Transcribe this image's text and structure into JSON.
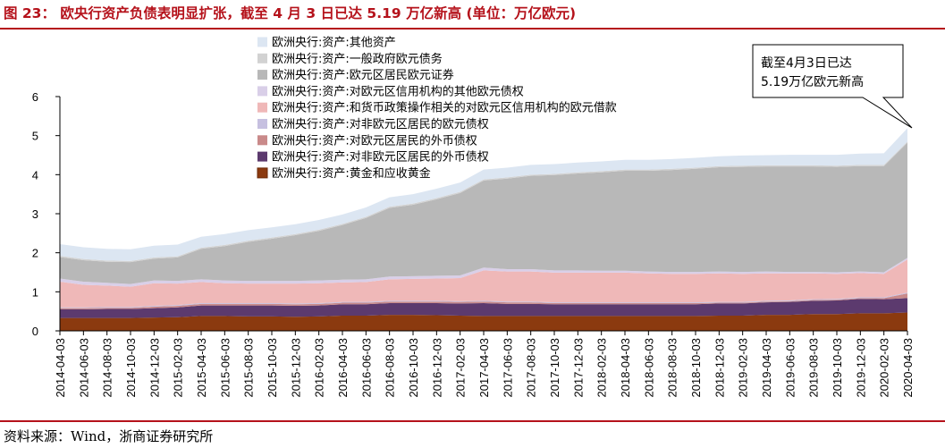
{
  "figure": {
    "label": "图 23：",
    "title": "欧央行资产负债表明显扩张，截至 4 月 3 日已达 5.19 万亿新高 (单位：万亿欧元)",
    "source": "资料来源：Wind，浙商证券研究所"
  },
  "chart_data": {
    "type": "area",
    "stacked": true,
    "title": "",
    "xlabel": "",
    "ylabel": "",
    "ylim": [
      0,
      6
    ],
    "yticks": [
      "0",
      "1",
      "2",
      "3",
      "4",
      "5",
      "6"
    ],
    "grid": false,
    "legend_position": "top-center",
    "x_tick_labels": [
      "2014-04-03",
      "2014-06-03",
      "2014-08-03",
      "2014-10-03",
      "2014-12-03",
      "2015-02-03",
      "2015-04-03",
      "2015-06-03",
      "2015-08-03",
      "2015-10-03",
      "2015-12-03",
      "2016-02-03",
      "2016-04-03",
      "2016-06-03",
      "2016-08-03",
      "2016-10-03",
      "2016-12-03",
      "2017-02-03",
      "2017-04-03",
      "2017-06-03",
      "2017-08-03",
      "2017-10-03",
      "2017-12-03",
      "2018-02-03",
      "2018-04-03",
      "2018-06-03",
      "2018-08-03",
      "2018-10-03",
      "2018-12-03",
      "2019-02-03",
      "2019-04-03",
      "2019-06-03",
      "2019-08-03",
      "2019-10-03",
      "2019-12-03",
      "2020-02-03",
      "2020-04-03"
    ],
    "x": [
      "2014-04",
      "2014-06",
      "2014-08",
      "2014-10",
      "2014-12",
      "2015-02",
      "2015-04",
      "2015-06",
      "2015-08",
      "2015-10",
      "2015-12",
      "2016-02",
      "2016-04",
      "2016-06",
      "2016-08",
      "2016-10",
      "2016-12",
      "2017-02",
      "2017-04",
      "2017-06",
      "2017-08",
      "2017-10",
      "2017-12",
      "2018-02",
      "2018-04",
      "2018-06",
      "2018-08",
      "2018-10",
      "2018-12",
      "2019-02",
      "2019-04",
      "2019-06",
      "2019-08",
      "2019-10",
      "2019-12",
      "2020-02",
      "2020-04"
    ],
    "series": [
      {
        "name": "欧洲央行:资产:黄金和应收黄金",
        "color": "#8b3a0f",
        "values": [
          0.33,
          0.33,
          0.33,
          0.33,
          0.34,
          0.35,
          0.38,
          0.38,
          0.37,
          0.37,
          0.36,
          0.37,
          0.39,
          0.39,
          0.41,
          0.41,
          0.4,
          0.39,
          0.38,
          0.38,
          0.38,
          0.38,
          0.38,
          0.38,
          0.38,
          0.38,
          0.38,
          0.38,
          0.39,
          0.39,
          0.41,
          0.41,
          0.43,
          0.43,
          0.45,
          0.45,
          0.47
        ]
      },
      {
        "name": "欧洲央行:资产:对非欧元区居民的外币债权",
        "color": "#5c3a6e",
        "values": [
          0.22,
          0.22,
          0.23,
          0.23,
          0.24,
          0.25,
          0.27,
          0.27,
          0.28,
          0.28,
          0.28,
          0.28,
          0.29,
          0.29,
          0.3,
          0.3,
          0.31,
          0.31,
          0.33,
          0.31,
          0.31,
          0.3,
          0.3,
          0.3,
          0.3,
          0.3,
          0.3,
          0.3,
          0.31,
          0.31,
          0.32,
          0.33,
          0.34,
          0.35,
          0.37,
          0.36,
          0.37
        ]
      },
      {
        "name": "欧洲央行:资产:对欧元区居民的外币债权",
        "color": "#c98a8a",
        "values": [
          0.03,
          0.03,
          0.03,
          0.03,
          0.04,
          0.04,
          0.04,
          0.04,
          0.04,
          0.04,
          0.04,
          0.04,
          0.04,
          0.04,
          0.04,
          0.04,
          0.04,
          0.04,
          0.04,
          0.04,
          0.04,
          0.03,
          0.03,
          0.03,
          0.03,
          0.03,
          0.03,
          0.03,
          0.02,
          0.02,
          0.02,
          0.02,
          0.02,
          0.02,
          0.02,
          0.03,
          0.12
        ]
      },
      {
        "name": "欧洲央行:资产:对非欧元区居民的欧元债权",
        "color": "#c6c0e0",
        "values": [
          0.02,
          0.02,
          0.02,
          0.02,
          0.02,
          0.02,
          0.02,
          0.02,
          0.02,
          0.02,
          0.02,
          0.02,
          0.02,
          0.02,
          0.02,
          0.02,
          0.02,
          0.02,
          0.02,
          0.02,
          0.02,
          0.02,
          0.02,
          0.02,
          0.02,
          0.02,
          0.02,
          0.02,
          0.02,
          0.02,
          0.02,
          0.02,
          0.02,
          0.02,
          0.02,
          0.02,
          0.02
        ]
      },
      {
        "name": "欧洲央行:资产:和货币政策操作相关的对欧元区信用机构的欧元借款",
        "color": "#efb8b8",
        "values": [
          0.66,
          0.58,
          0.55,
          0.52,
          0.58,
          0.55,
          0.54,
          0.51,
          0.5,
          0.5,
          0.51,
          0.51,
          0.5,
          0.51,
          0.55,
          0.56,
          0.57,
          0.59,
          0.78,
          0.77,
          0.77,
          0.76,
          0.76,
          0.76,
          0.76,
          0.74,
          0.73,
          0.73,
          0.73,
          0.72,
          0.7,
          0.69,
          0.66,
          0.64,
          0.62,
          0.6,
          0.85
        ]
      },
      {
        "name": "欧洲央行:资产:对欧元区信用机构的其他欧元债权",
        "color": "#d9cfe8",
        "values": [
          0.08,
          0.08,
          0.07,
          0.07,
          0.07,
          0.07,
          0.07,
          0.07,
          0.07,
          0.07,
          0.07,
          0.07,
          0.07,
          0.07,
          0.07,
          0.07,
          0.07,
          0.07,
          0.07,
          0.06,
          0.06,
          0.06,
          0.06,
          0.05,
          0.05,
          0.05,
          0.05,
          0.05,
          0.05,
          0.05,
          0.05,
          0.04,
          0.04,
          0.04,
          0.04,
          0.04,
          0.04
        ]
      },
      {
        "name": "欧洲央行:资产:欧元区居民欧元证券",
        "color": "#b8b8b8",
        "values": [
          0.55,
          0.55,
          0.54,
          0.56,
          0.56,
          0.6,
          0.78,
          0.88,
          1.0,
          1.08,
          1.17,
          1.27,
          1.4,
          1.57,
          1.76,
          1.83,
          1.96,
          2.11,
          2.23,
          2.32,
          2.39,
          2.44,
          2.48,
          2.52,
          2.56,
          2.58,
          2.61,
          2.64,
          2.67,
          2.69,
          2.69,
          2.7,
          2.7,
          2.7,
          2.7,
          2.72,
          2.95
        ]
      },
      {
        "name": "欧洲央行:资产:一般政府欧元债务",
        "color": "#d2d2d2",
        "values": [
          0.03,
          0.03,
          0.03,
          0.03,
          0.03,
          0.03,
          0.03,
          0.03,
          0.03,
          0.03,
          0.03,
          0.03,
          0.03,
          0.03,
          0.03,
          0.03,
          0.03,
          0.03,
          0.03,
          0.03,
          0.03,
          0.03,
          0.03,
          0.03,
          0.03,
          0.03,
          0.03,
          0.03,
          0.03,
          0.03,
          0.03,
          0.03,
          0.03,
          0.03,
          0.03,
          0.03,
          0.03
        ]
      },
      {
        "name": "欧洲央行:资产:其他资产",
        "color": "#dce6f2",
        "values": [
          0.3,
          0.3,
          0.3,
          0.3,
          0.3,
          0.3,
          0.28,
          0.28,
          0.27,
          0.26,
          0.25,
          0.25,
          0.24,
          0.24,
          0.24,
          0.24,
          0.24,
          0.24,
          0.25,
          0.25,
          0.25,
          0.25,
          0.25,
          0.25,
          0.25,
          0.25,
          0.25,
          0.25,
          0.25,
          0.26,
          0.26,
          0.27,
          0.27,
          0.28,
          0.29,
          0.3,
          0.34
        ]
      }
    ],
    "annotation": {
      "lines": [
        "截至4月3日已达",
        "5.19万亿欧元新高"
      ]
    }
  }
}
